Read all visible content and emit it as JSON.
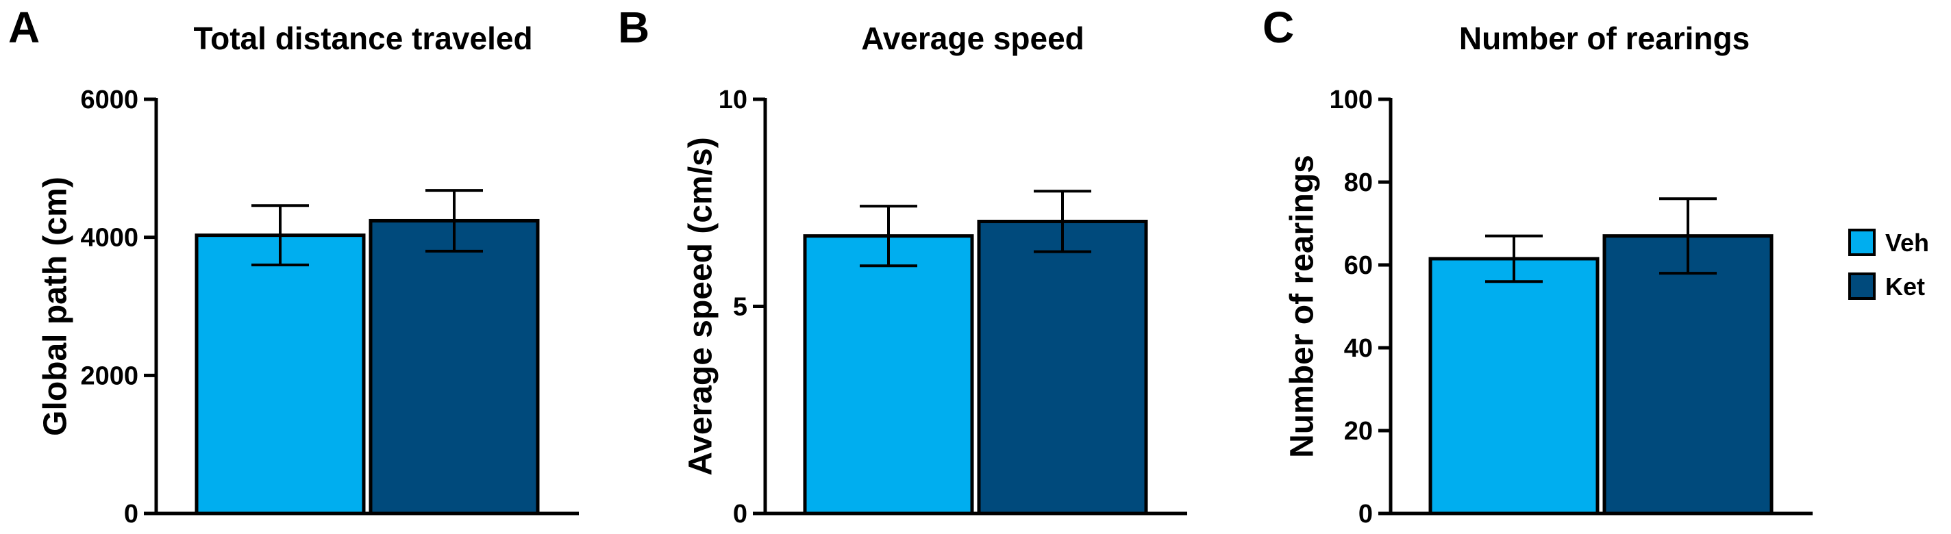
{
  "chart_data": [
    {
      "panel": "A",
      "type": "bar",
      "title": "Total distance traveled",
      "ylabel": "Global path (cm)",
      "xlabel": "",
      "ylim": [
        0,
        6000
      ],
      "yticks": [
        0,
        2000,
        4000,
        6000
      ],
      "categories": [
        "Veh",
        "Ket"
      ],
      "values": [
        4030,
        4240
      ],
      "errors": [
        430,
        440
      ],
      "colors": [
        "#00AEEF",
        "#004A7C"
      ]
    },
    {
      "panel": "B",
      "type": "bar",
      "title": "Average speed",
      "ylabel": "Average speed (cm/s)",
      "xlabel": "",
      "ylim": [
        0,
        10
      ],
      "yticks": [
        0,
        5,
        10
      ],
      "categories": [
        "Veh",
        "Ket"
      ],
      "values": [
        6.7,
        7.05
      ],
      "errors": [
        0.72,
        0.73
      ],
      "colors": [
        "#00AEEF",
        "#004A7C"
      ]
    },
    {
      "panel": "C",
      "type": "bar",
      "title": "Number of rearings",
      "ylabel": "Number of rearings",
      "xlabel": "",
      "ylim": [
        0,
        100
      ],
      "yticks": [
        0,
        20,
        40,
        60,
        80,
        100
      ],
      "categories": [
        "Veh",
        "Ket"
      ],
      "values": [
        61.5,
        67
      ],
      "errors": [
        5.5,
        9
      ],
      "colors": [
        "#00AEEF",
        "#004A7C"
      ]
    }
  ],
  "legend": {
    "position": "right",
    "items": [
      {
        "label": "Veh",
        "color": "#00AEEF"
      },
      {
        "label": "Ket",
        "color": "#004A7C"
      }
    ]
  }
}
